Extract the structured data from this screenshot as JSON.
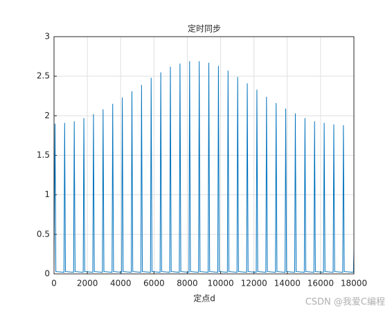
{
  "chart_data": {
    "type": "line",
    "title": "定时同步",
    "xlabel": "定点d",
    "watermark": "CSDN @我爱C编程",
    "x": [
      0,
      60,
      110,
      597,
      637,
      687,
      1174,
      1214,
      1264,
      1751,
      1791,
      1841,
      2328,
      2368,
      2418,
      2905,
      2945,
      2995,
      3482,
      3522,
      3572,
      4059,
      4099,
      4149,
      4636,
      4676,
      4726,
      5213,
      5253,
      5303,
      5790,
      5830,
      5880,
      6367,
      6407,
      6457,
      6944,
      6984,
      7034,
      7521,
      7561,
      7611,
      8098,
      8138,
      8188,
      8675,
      8715,
      8765,
      9252,
      9292,
      9342,
      9829,
      9869,
      9919,
      10406,
      10446,
      10496,
      10983,
      11023,
      11073,
      11560,
      11600,
      11650,
      12137,
      12177,
      12227,
      12714,
      12754,
      12804,
      13291,
      13331,
      13381,
      13868,
      13908,
      13958,
      14445,
      14485,
      14535,
      15022,
      15062,
      15112,
      15599,
      15639,
      15689,
      16176,
      16216,
      16266,
      16753,
      16793,
      16843,
      17330,
      17370,
      17420,
      17970,
      18000
    ],
    "series": [
      {
        "color": "#0072bd",
        "values": [
          0.02,
          1.9,
          0.03,
          0.02,
          1.91,
          0.03,
          0.02,
          1.93,
          0.03,
          0.02,
          1.97,
          0.03,
          0.02,
          2.02,
          0.03,
          0.02,
          2.08,
          0.03,
          0.02,
          2.15,
          0.03,
          0.02,
          2.23,
          0.03,
          0.02,
          2.31,
          0.03,
          0.02,
          2.39,
          0.03,
          0.02,
          2.48,
          0.03,
          0.02,
          2.55,
          0.03,
          0.02,
          2.62,
          0.03,
          0.02,
          2.66,
          0.03,
          0.02,
          2.69,
          0.03,
          0.02,
          2.69,
          0.03,
          0.02,
          2.67,
          0.03,
          0.02,
          2.63,
          0.03,
          0.02,
          2.57,
          0.03,
          0.02,
          2.49,
          0.03,
          0.02,
          2.41,
          0.03,
          0.02,
          2.33,
          0.03,
          0.02,
          2.24,
          0.03,
          0.02,
          2.16,
          0.03,
          0.02,
          2.09,
          0.03,
          0.02,
          2.03,
          0.03,
          0.02,
          1.97,
          0.03,
          0.02,
          1.93,
          0.03,
          0.02,
          1.91,
          0.03,
          0.02,
          1.89,
          0.03,
          0.02,
          1.88,
          0.03,
          0.02,
          0.3
        ]
      }
    ],
    "xlim": [
      0,
      18000
    ],
    "xticks": [
      0,
      2000,
      4000,
      6000,
      8000,
      10000,
      12000,
      14000,
      16000,
      18000
    ],
    "ylim": [
      0,
      3
    ],
    "yticks": [
      0,
      0.5,
      1,
      1.5,
      2,
      2.5,
      3
    ],
    "grid": true
  }
}
